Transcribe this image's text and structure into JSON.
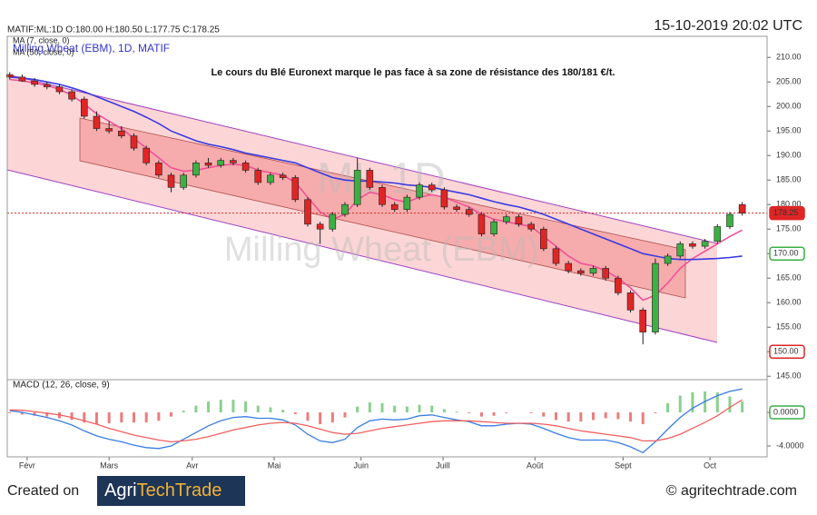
{
  "header": {
    "ohlc": "MATIF:ML:1D O:180.00 H:180.50 L:177.75 C:178.25",
    "datetime": "15-10-2019 20:02 UTC"
  },
  "footer": {
    "created_on": "Created on",
    "logo_left": "Agri",
    "logo_right": "TechTrade",
    "website": "© agritechtrade.com"
  },
  "chart_data": [
    {
      "type": "candlestick",
      "title": "Milling Wheat (EBM), 1D, MATIF",
      "annotation": "Le cours du Blé Euronext marque le pas face à sa zone de résistance des 180/181 €/t.",
      "watermark": [
        "ML.1D",
        "Milling Wheat (EBM)"
      ],
      "x": [
        0,
        1,
        2,
        3,
        4,
        5,
        6,
        7,
        8,
        9,
        10,
        11,
        12,
        13,
        14,
        15,
        16,
        17,
        18,
        19,
        20,
        21,
        22,
        23,
        24,
        25,
        26,
        27,
        28,
        29,
        30,
        31,
        32,
        33,
        34,
        35,
        36,
        37,
        38,
        39,
        40,
        41,
        42,
        43,
        44,
        45,
        46,
        47,
        48,
        49,
        50,
        51,
        52,
        53,
        54,
        55,
        56,
        57,
        58,
        59
      ],
      "xlim": [
        -0.2,
        61
      ],
      "open": [
        206.5,
        206.0,
        205.2,
        204.5,
        204.0,
        203.0,
        201.5,
        198.0,
        195.5,
        195.0,
        194.0,
        191.5,
        188.5,
        186.0,
        183.5,
        186.0,
        188.5,
        188.0,
        189.0,
        188.5,
        187.0,
        184.5,
        186.0,
        185.5,
        181.0,
        176.0,
        175.0,
        178.0,
        180.0,
        187.0,
        183.5,
        180.0,
        179.0,
        181.5,
        184.0,
        183.0,
        179.5,
        179.0,
        178.0,
        174.0,
        176.5,
        177.5,
        176.0,
        175.0,
        171.0,
        168.0,
        166.5,
        166.0,
        167.0,
        165.0,
        162.0,
        158.5,
        154.0,
        168.0,
        169.5,
        172.0,
        171.5,
        172.5,
        175.5,
        180.0
      ],
      "high": [
        207.0,
        206.5,
        205.8,
        205.0,
        204.5,
        203.5,
        202.0,
        199.0,
        197.0,
        196.0,
        194.5,
        192.0,
        189.0,
        186.5,
        186.5,
        189.0,
        189.5,
        189.5,
        189.5,
        189.0,
        187.5,
        186.5,
        186.5,
        186.0,
        181.5,
        176.5,
        178.5,
        180.5,
        189.5,
        187.5,
        184.0,
        180.5,
        182.0,
        184.5,
        184.5,
        183.5,
        180.0,
        179.5,
        178.5,
        177.0,
        178.0,
        178.0,
        176.5,
        175.5,
        171.5,
        168.5,
        167.0,
        167.5,
        167.5,
        165.5,
        162.5,
        159.0,
        169.0,
        170.0,
        172.5,
        172.5,
        173.0,
        176.0,
        178.5,
        180.5
      ],
      "low": [
        205.5,
        205.0,
        204.0,
        203.5,
        202.5,
        201.0,
        197.5,
        195.0,
        194.5,
        193.5,
        191.0,
        188.0,
        185.5,
        182.5,
        183.0,
        185.5,
        187.5,
        187.5,
        188.0,
        186.5,
        184.0,
        184.0,
        185.0,
        180.5,
        175.5,
        172.0,
        174.5,
        177.5,
        179.5,
        183.0,
        179.5,
        178.5,
        178.5,
        181.0,
        182.5,
        179.0,
        178.5,
        177.5,
        173.5,
        173.5,
        176.0,
        175.5,
        174.5,
        170.5,
        167.5,
        166.0,
        165.5,
        165.5,
        164.5,
        161.5,
        158.0,
        151.5,
        153.5,
        167.5,
        169.0,
        171.0,
        171.0,
        172.0,
        175.0,
        177.75
      ],
      "close": [
        206.0,
        205.2,
        204.5,
        204.0,
        203.0,
        201.5,
        198.0,
        195.5,
        195.0,
        194.0,
        191.5,
        188.5,
        186.0,
        183.5,
        186.0,
        188.5,
        188.0,
        189.0,
        188.5,
        187.0,
        184.5,
        186.0,
        185.5,
        181.0,
        176.0,
        175.0,
        178.0,
        180.0,
        187.0,
        183.5,
        180.0,
        179.0,
        181.5,
        184.0,
        183.0,
        179.5,
        179.0,
        178.0,
        174.0,
        176.5,
        177.5,
        176.0,
        175.0,
        171.0,
        168.0,
        166.5,
        166.0,
        167.0,
        165.0,
        162.0,
        158.5,
        154.0,
        168.0,
        169.5,
        172.0,
        171.5,
        172.5,
        175.5,
        178.0,
        178.25
      ],
      "up_color": "#3cb043",
      "down_color": "#e02525",
      "series": [
        {
          "name": "MA (7, close, 0)",
          "color": "#f0509a",
          "values": [
            205.5,
            205.2,
            204.8,
            204.3,
            203.5,
            202.3,
            200.5,
            198.5,
            197,
            195.5,
            193.5,
            191.5,
            189.5,
            187.5,
            186.8,
            187,
            187.5,
            188,
            188.2,
            188,
            187,
            186.5,
            186,
            184.5,
            181.5,
            178.5,
            177,
            178,
            181,
            182.5,
            182,
            181,
            180.5,
            181.5,
            182,
            181.5,
            180.5,
            179.5,
            178,
            177,
            176.5,
            176,
            175.5,
            173.5,
            171.5,
            169.5,
            168,
            167.5,
            166.5,
            165,
            163,
            160.5,
            161.5,
            164,
            167,
            169,
            170.5,
            172,
            173.5,
            174.8
          ]
        },
        {
          "name": "MA (50, close, 0)",
          "color": "#3a3ae0",
          "values": [
            206,
            205.8,
            205.5,
            205,
            204.5,
            203.8,
            203,
            202,
            201,
            200,
            199,
            197.8,
            196.5,
            195,
            194,
            193,
            192.3,
            191.8,
            191.2,
            190.5,
            190,
            189.5,
            189,
            188.5,
            187.5,
            186.5,
            185.5,
            185,
            184.8,
            184.8,
            184.6,
            184.4,
            184,
            183.8,
            183.5,
            183,
            182.5,
            182,
            181.3,
            180.6,
            180,
            179.5,
            178.8,
            178,
            177,
            176,
            175,
            174,
            173,
            172,
            171,
            170,
            169.5,
            169,
            168.8,
            168.8,
            168.9,
            169,
            169.2,
            169.5
          ]
        }
      ],
      "ylim": [
        144.3,
        214.3
      ],
      "yticks": [
        {
          "value": 145,
          "label": "145.00"
        },
        {
          "value": 150,
          "label": "150.00"
        },
        {
          "value": 155,
          "label": "155.00"
        },
        {
          "value": 160,
          "label": "160.00"
        },
        {
          "value": 165,
          "label": "165.00"
        },
        {
          "value": 170,
          "label": "170.00"
        },
        {
          "value": 175,
          "label": "175.00"
        },
        {
          "value": 180,
          "label": "180.00"
        },
        {
          "value": 185,
          "label": "185.00"
        },
        {
          "value": 190,
          "label": "190.00"
        },
        {
          "value": 195,
          "label": "195.00"
        },
        {
          "value": 200,
          "label": "200.00"
        },
        {
          "value": 205,
          "label": "205.00"
        },
        {
          "value": 210,
          "label": "210.00"
        }
      ],
      "price_tags": [
        {
          "value": 178.25,
          "label": "178.25",
          "color": "#e02525",
          "filled": true
        },
        {
          "value": 170,
          "label": "170.00",
          "color": "#3cb043",
          "filled": false
        },
        {
          "value": 150,
          "label": "150.00",
          "color": "#e02525",
          "filled": false
        }
      ]
    },
    {
      "type": "macd",
      "title": "MACD (12, 26, close, 9)",
      "x": [
        0,
        1,
        2,
        3,
        4,
        5,
        6,
        7,
        8,
        9,
        10,
        11,
        12,
        13,
        14,
        15,
        16,
        17,
        18,
        19,
        20,
        21,
        22,
        23,
        24,
        25,
        26,
        27,
        28,
        29,
        30,
        31,
        32,
        33,
        34,
        35,
        36,
        37,
        38,
        39,
        40,
        41,
        42,
        43,
        44,
        45,
        46,
        47,
        48,
        49,
        50,
        51,
        52,
        53,
        54,
        55,
        56,
        57,
        58,
        59
      ],
      "xlim": [
        -0.2,
        61
      ],
      "xticks": [
        {
          "value": 1.4,
          "label": "Févr"
        },
        {
          "value": 8.0,
          "label": "Mars"
        },
        {
          "value": 14.7,
          "label": "Avr"
        },
        {
          "value": 21.3,
          "label": "Mai"
        },
        {
          "value": 28.3,
          "label": "Juin"
        },
        {
          "value": 34.9,
          "label": "Juill"
        },
        {
          "value": 42.3,
          "label": "Août"
        },
        {
          "value": 49.4,
          "label": "Sept"
        },
        {
          "value": 56.4,
          "label": "Oct"
        }
      ],
      "histogram": {
        "up_color": "#3cb043",
        "down_color": "#e02525",
        "values": [
          -0.1,
          -0.25,
          -0.4,
          -0.5,
          -0.7,
          -0.9,
          -1.2,
          -1.4,
          -1.3,
          -1.2,
          -1.2,
          -1.2,
          -1.0,
          -0.5,
          0.2,
          0.8,
          1.3,
          1.5,
          1.5,
          1.3,
          0.8,
          0.6,
          0.3,
          -0.2,
          -1.0,
          -1.4,
          -1.2,
          -0.6,
          0.7,
          1.2,
          1.1,
          0.8,
          0.7,
          0.9,
          0.8,
          0.4,
          0.1,
          -0.1,
          -0.5,
          -0.4,
          -0.1,
          0,
          -0.1,
          -0.5,
          -0.9,
          -1.1,
          -1.1,
          -0.9,
          -0.7,
          -0.8,
          -1.1,
          -1.4,
          -0.1,
          1.1,
          2.0,
          2.4,
          2.5,
          2.4,
          1.9,
          1.3
        ]
      },
      "series": [
        {
          "color": "#3a7ee0",
          "values": [
            0.2,
            0,
            -0.3,
            -0.6,
            -1,
            -1.5,
            -2.2,
            -2.8,
            -3.2,
            -3.5,
            -3.9,
            -4.2,
            -4.3,
            -4.0,
            -3.2,
            -2.4,
            -1.6,
            -1.0,
            -0.6,
            -0.5,
            -0.7,
            -0.7,
            -0.9,
            -1.5,
            -2.6,
            -3.4,
            -3.6,
            -3.2,
            -1.8,
            -1.0,
            -0.8,
            -0.9,
            -0.8,
            -0.4,
            -0.3,
            -0.6,
            -0.9,
            -1.1,
            -1.6,
            -1.6,
            -1.4,
            -1.3,
            -1.4,
            -1.9,
            -2.5,
            -3.0,
            -3.3,
            -3.3,
            -3.3,
            -3.6,
            -4.1,
            -4.8,
            -3.5,
            -2.0,
            -0.6,
            0.5,
            1.3,
            2.0,
            2.5,
            2.8
          ]
        },
        {
          "color": "#f06060",
          "values": [
            0.3,
            0.25,
            0.1,
            -0.1,
            -0.3,
            -0.6,
            -1,
            -1.4,
            -1.9,
            -2.3,
            -2.7,
            -3.0,
            -3.3,
            -3.5,
            -3.4,
            -3.2,
            -2.9,
            -2.5,
            -2.1,
            -1.8,
            -1.5,
            -1.3,
            -1.2,
            -1.3,
            -1.6,
            -2.0,
            -2.4,
            -2.6,
            -2.5,
            -2.2,
            -1.9,
            -1.7,
            -1.5,
            -1.3,
            -1.1,
            -1.0,
            -1.0,
            -1.0,
            -1.1,
            -1.2,
            -1.3,
            -1.3,
            -1.3,
            -1.4,
            -1.6,
            -1.9,
            -2.2,
            -2.4,
            -2.6,
            -2.8,
            -3.0,
            -3.4,
            -3.4,
            -3.1,
            -2.6,
            -1.9,
            -1.2,
            -0.4,
            0.6,
            1.5
          ]
        }
      ],
      "ylim": [
        -5.3,
        3.9
      ],
      "yticks": [
        {
          "value": 0,
          "label": "0.0000"
        },
        {
          "value": -4,
          "label": "-4.0000"
        }
      ],
      "price_tags": [
        {
          "value": 0,
          "label": "0.0000",
          "color": "#3cb043",
          "filled": false
        }
      ]
    }
  ]
}
